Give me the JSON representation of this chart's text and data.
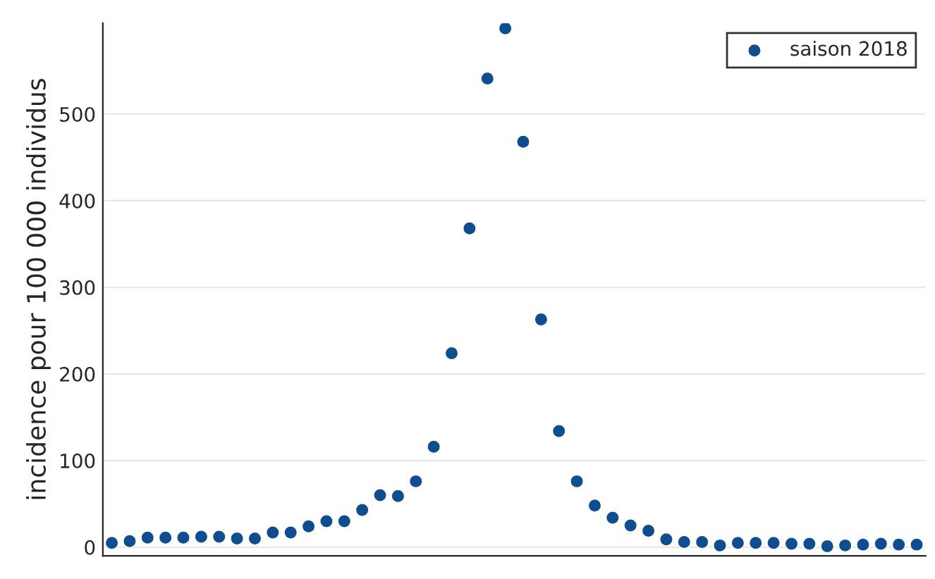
{
  "chart_data": {
    "type": "scatter",
    "ylabel": "incidence pour 100 000 individus",
    "categories": [
      null,
      null,
      null,
      null,
      null,
      null,
      null,
      null,
      null,
      null,
      null,
      null,
      null,
      null,
      null,
      null,
      null,
      null,
      null,
      null,
      null,
      null,
      null,
      null,
      null,
      null,
      null,
      null,
      null,
      null,
      null,
      null,
      null,
      null,
      null,
      null,
      null,
      null,
      null,
      null,
      null,
      null,
      null,
      null,
      null,
      null
    ],
    "series": [
      {
        "name": "saison 2018",
        "color": "#0e4d8f",
        "values": [
          5,
          7,
          11,
          11,
          11,
          12,
          12,
          10,
          10,
          17,
          17,
          24,
          30,
          30,
          43,
          60,
          59,
          76,
          116,
          224,
          368,
          541,
          599,
          468,
          263,
          134,
          76,
          48,
          34,
          25,
          19,
          9,
          6,
          6,
          2,
          5,
          5,
          5,
          4,
          4,
          1,
          2,
          3,
          4,
          3,
          3
        ]
      }
    ],
    "ylim": [
      -10,
      605
    ],
    "yticks": [
      0,
      100,
      200,
      300,
      400,
      500
    ],
    "tick_labels": "y",
    "grid": "y",
    "legend": "top right",
    "marker": "circle"
  }
}
